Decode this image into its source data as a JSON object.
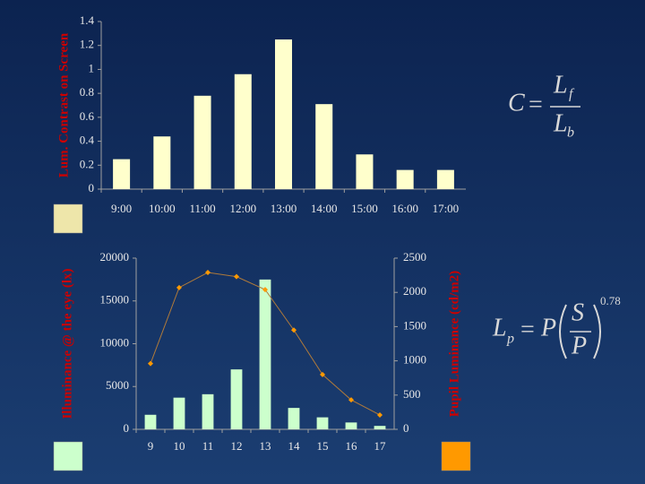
{
  "chart_data": [
    {
      "type": "bar",
      "y_label": "Lum. Contrast on Screen",
      "categories": [
        "9:00",
        "10:00",
        "11:00",
        "12:00",
        "13:00",
        "14:00",
        "15:00",
        "16:00",
        "17:00"
      ],
      "values": [
        0.25,
        0.44,
        0.78,
        0.96,
        1.25,
        0.71,
        0.29,
        0.16,
        0.16
      ],
      "color": "#ffffcc",
      "ylim": [
        0,
        1.4
      ],
      "yticks": [
        0,
        0.2,
        0.4,
        0.6,
        0.8,
        1,
        1.2,
        1.4
      ],
      "grid": false
    },
    {
      "type": "bar",
      "y_label": "Illuminance @ the eye (lx)",
      "y2_label": "Pupil Luminance (cd/m2)",
      "categories": [
        "9",
        "10",
        "11",
        "12",
        "13",
        "14",
        "15",
        "16",
        "17"
      ],
      "series": [
        {
          "color": "#ccffcc",
          "values": [
            1700,
            3700,
            4100,
            7000,
            17500,
            2500,
            1400,
            800,
            400
          ]
        },
        {
          "type": "line",
          "axis": "y2",
          "color": "#ff9900",
          "values": [
            960,
            2070,
            2290,
            2230,
            2040,
            1450,
            800,
            430,
            210
          ]
        }
      ],
      "ylim": [
        0,
        20000
      ],
      "yticks": [
        0,
        5000,
        10000,
        15000,
        20000
      ],
      "y2lim": [
        0,
        2500
      ],
      "y2ticks": [
        0,
        500,
        1000,
        1500,
        2000,
        2500
      ],
      "grid": false
    }
  ],
  "formulas": [
    {
      "lhs": "C",
      "equals": "=",
      "numerator": "L",
      "numerator_sub": "f",
      "denominator": "L",
      "denominator_sub": "b"
    },
    {
      "lhs": "L",
      "lhs_sub": "p",
      "equals": "=",
      "factor": "P",
      "numerator": "S",
      "denominator": "P",
      "exponent": "0.78"
    }
  ]
}
